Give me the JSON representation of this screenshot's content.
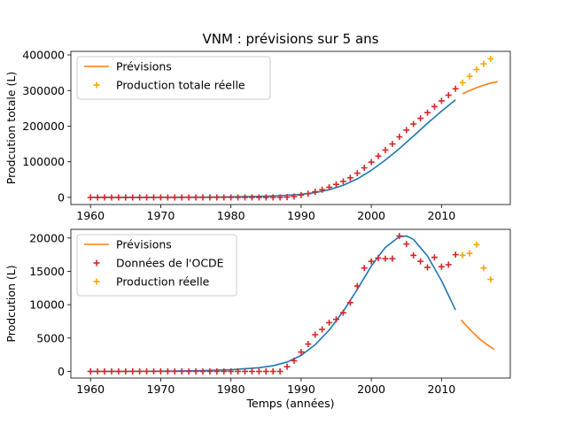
{
  "figure": {
    "title": "VNM : prévisions sur 5 ans"
  },
  "chart_data": [
    {
      "type": "line",
      "title": "",
      "xlabel": "",
      "ylabel": "Prodcution totale (L)",
      "xlim": [
        1957.2,
        2019.8
      ],
      "ylim": [
        -20000,
        410000
      ],
      "xticks": [
        1960,
        1970,
        1980,
        1990,
        2000,
        2010
      ],
      "yticks": [
        0,
        100000,
        200000,
        300000,
        400000
      ],
      "legend": {
        "placement": "top-left",
        "entries": [
          "Prévisions",
          "Production totale réelle"
        ]
      },
      "series": [
        {
          "name": "",
          "kind": "line",
          "color": "#1f77b4",
          "points": [
            [
              1960,
              0
            ],
            [
              1964,
              50
            ],
            [
              1968,
              150
            ],
            [
              1972,
              350
            ],
            [
              1976,
              800
            ],
            [
              1980,
              1600
            ],
            [
              1984,
              3000
            ],
            [
              1986,
              4200
            ],
            [
              1988,
              6000
            ],
            [
              1990,
              8800
            ],
            [
              1992,
              13500
            ],
            [
              1994,
              21500
            ],
            [
              1996,
              34000
            ],
            [
              1998,
              52000
            ],
            [
              2000,
              76000
            ],
            [
              2002,
              105000
            ],
            [
              2004,
              137000
            ],
            [
              2006,
              172000
            ],
            [
              2008,
              208000
            ],
            [
              2010,
              242000
            ],
            [
              2012,
              274000
            ]
          ]
        },
        {
          "name": "Prévisions",
          "kind": "line",
          "color": "#ff7f0e",
          "points": [
            [
              2013,
              291000
            ],
            [
              2014,
              300000
            ],
            [
              2015,
              308000
            ],
            [
              2016,
              315000
            ],
            [
              2017,
              321000
            ],
            [
              2018,
              325000
            ]
          ]
        },
        {
          "name": "",
          "kind": "scatter",
          "color": "#d62728",
          "points": [
            [
              1960,
              0
            ],
            [
              1961,
              0
            ],
            [
              1962,
              0
            ],
            [
              1963,
              0
            ],
            [
              1964,
              0
            ],
            [
              1965,
              0
            ],
            [
              1966,
              0
            ],
            [
              1967,
              0
            ],
            [
              1968,
              0
            ],
            [
              1969,
              0
            ],
            [
              1970,
              0
            ],
            [
              1971,
              0
            ],
            [
              1972,
              0
            ],
            [
              1973,
              0
            ],
            [
              1974,
              0
            ],
            [
              1975,
              0
            ],
            [
              1976,
              0
            ],
            [
              1977,
              0
            ],
            [
              1978,
              0
            ],
            [
              1979,
              0
            ],
            [
              1980,
              0
            ],
            [
              1981,
              0
            ],
            [
              1982,
              0
            ],
            [
              1983,
              0
            ],
            [
              1984,
              0
            ],
            [
              1985,
              0
            ],
            [
              1986,
              0
            ],
            [
              1987,
              0
            ],
            [
              1988,
              800
            ],
            [
              1989,
              2500
            ],
            [
              1990,
              6500
            ],
            [
              1991,
              10500
            ],
            [
              1992,
              16000
            ],
            [
              1993,
              21500
            ],
            [
              1994,
              28500
            ],
            [
              1995,
              36500
            ],
            [
              1996,
              45000
            ],
            [
              1997,
              55000
            ],
            [
              1998,
              68000
            ],
            [
              1999,
              83000
            ],
            [
              2000,
              99000
            ],
            [
              2001,
              116000
            ],
            [
              2002,
              133000
            ],
            [
              2003,
              150000
            ],
            [
              2004,
              170000
            ],
            [
              2005,
              189000
            ],
            [
              2006,
              206000
            ],
            [
              2007,
              222000
            ],
            [
              2008,
              238000
            ],
            [
              2009,
              255000
            ],
            [
              2010,
              271000
            ],
            [
              2011,
              287000
            ],
            [
              2012,
              305000
            ]
          ]
        },
        {
          "name": "Production totale réelle",
          "kind": "scatter",
          "color": "#ffa500",
          "points": [
            [
              2013,
              322000
            ],
            [
              2014,
              340000
            ],
            [
              2015,
              359000
            ],
            [
              2016,
              375000
            ],
            [
              2017,
              389000
            ]
          ]
        }
      ]
    },
    {
      "type": "line",
      "title": "",
      "xlabel": "Temps (années)",
      "ylabel": "Prodcution (L)",
      "xlim": [
        1957.2,
        2019.8
      ],
      "ylim": [
        -1000,
        21300
      ],
      "xticks": [
        1960,
        1970,
        1980,
        1990,
        2000,
        2010
      ],
      "yticks": [
        0,
        5000,
        10000,
        15000,
        20000
      ],
      "legend": {
        "placement": "top-left",
        "entries": [
          "Prévisions",
          "Données de l'OCDE",
          "Production réelle"
        ]
      },
      "series": [
        {
          "name": "",
          "kind": "line",
          "color": "#1f77b4",
          "points": [
            [
              1960,
              0
            ],
            [
              1964,
              10
            ],
            [
              1968,
              30
            ],
            [
              1972,
              60
            ],
            [
              1976,
              120
            ],
            [
              1980,
              250
            ],
            [
              1984,
              550
            ],
            [
              1986,
              850
            ],
            [
              1988,
              1400
            ],
            [
              1990,
              2400
            ],
            [
              1992,
              4000
            ],
            [
              1994,
              6200
            ],
            [
              1996,
              9000
            ],
            [
              1998,
              12300
            ],
            [
              2000,
              15800
            ],
            [
              2002,
              18600
            ],
            [
              2004,
              20200
            ],
            [
              2005,
              20300
            ],
            [
              2006,
              19800
            ],
            [
              2008,
              17300
            ],
            [
              2010,
              13600
            ],
            [
              2012,
              9200
            ]
          ]
        },
        {
          "name": "Prévisions",
          "kind": "line",
          "color": "#ff7f0e",
          "points": [
            [
              2012.8,
              7700
            ],
            [
              2013.5,
              6900
            ],
            [
              2014.5,
              5800
            ],
            [
              2015.5,
              4800
            ],
            [
              2016.5,
              4000
            ],
            [
              2017.5,
              3300
            ]
          ]
        },
        {
          "name": "Données de l'OCDE",
          "kind": "scatter",
          "color": "#d62728",
          "points": [
            [
              1960,
              0
            ],
            [
              1961,
              0
            ],
            [
              1962,
              0
            ],
            [
              1963,
              0
            ],
            [
              1964,
              0
            ],
            [
              1965,
              0
            ],
            [
              1966,
              0
            ],
            [
              1967,
              0
            ],
            [
              1968,
              0
            ],
            [
              1969,
              0
            ],
            [
              1970,
              0
            ],
            [
              1971,
              0
            ],
            [
              1972,
              0
            ],
            [
              1973,
              0
            ],
            [
              1974,
              0
            ],
            [
              1975,
              0
            ],
            [
              1976,
              0
            ],
            [
              1977,
              0
            ],
            [
              1978,
              0
            ],
            [
              1979,
              0
            ],
            [
              1980,
              0
            ],
            [
              1981,
              0
            ],
            [
              1982,
              0
            ],
            [
              1983,
              0
            ],
            [
              1984,
              0
            ],
            [
              1985,
              0
            ],
            [
              1986,
              0
            ],
            [
              1987,
              0
            ],
            [
              1988,
              700
            ],
            [
              1989,
              1600
            ],
            [
              1990,
              2900
            ],
            [
              1991,
              4100
            ],
            [
              1992,
              5500
            ],
            [
              1993,
              6300
            ],
            [
              1994,
              7300
            ],
            [
              1995,
              7800
            ],
            [
              1996,
              8800
            ],
            [
              1997,
              10300
            ],
            [
              1998,
              12800
            ],
            [
              1999,
              15500
            ],
            [
              2000,
              16500
            ],
            [
              2001,
              17000
            ],
            [
              2002,
              16900
            ],
            [
              2003,
              16900
            ],
            [
              2004,
              20300
            ],
            [
              2005,
              19100
            ],
            [
              2006,
              17400
            ],
            [
              2007,
              16500
            ],
            [
              2008,
              15600
            ],
            [
              2009,
              17100
            ],
            [
              2010,
              15700
            ],
            [
              2011,
              16000
            ],
            [
              2012,
              17500
            ]
          ]
        },
        {
          "name": "Production réelle",
          "kind": "scatter",
          "color": "#ffa500",
          "points": [
            [
              2013,
              17400
            ],
            [
              2014,
              17700
            ],
            [
              2015,
              19000
            ],
            [
              2016,
              15500
            ],
            [
              2017,
              13800
            ]
          ]
        }
      ]
    }
  ]
}
